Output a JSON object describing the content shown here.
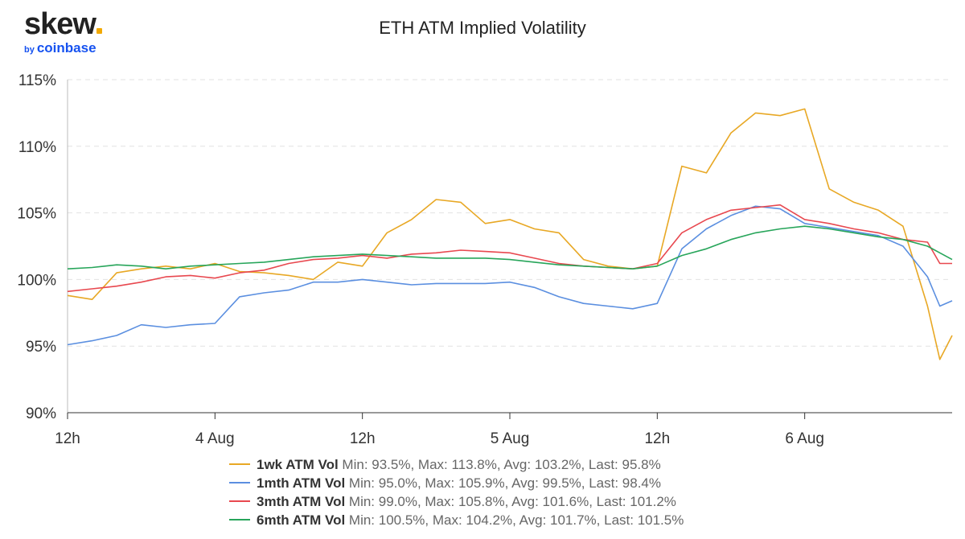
{
  "logo": {
    "wordmark": "skew",
    "by": "by",
    "brand": "coinbase"
  },
  "chart_data": {
    "type": "line",
    "title": "ETH ATM Implied Volatility",
    "xlabel": "",
    "ylabel": "",
    "ylim": [
      90,
      115
    ],
    "y_ticks": [
      90,
      95,
      100,
      105,
      110,
      115
    ],
    "y_tick_labels": [
      "90%",
      "95%",
      "100%",
      "105%",
      "110%",
      "115%"
    ],
    "xlim": [
      -12,
      60
    ],
    "x_unit": "hours from 00:00 4 Aug",
    "x_ticks": [
      -12,
      0,
      12,
      24,
      36,
      48
    ],
    "x_tick_labels": [
      "12h",
      "4 Aug",
      "12h",
      "5 Aug",
      "12h",
      "6 Aug"
    ],
    "grid": true,
    "legend_position": "bottom",
    "x": [
      -12,
      -10,
      -8,
      -6,
      -4,
      -2,
      0,
      2,
      4,
      6,
      8,
      10,
      12,
      14,
      16,
      18,
      20,
      22,
      24,
      26,
      28,
      30,
      32,
      34,
      36,
      38,
      40,
      42,
      44,
      46,
      48,
      50,
      52,
      54,
      56,
      58,
      59,
      60
    ],
    "series": [
      {
        "name": "1wk ATM Vol",
        "color": "#e8a825",
        "stats": "Min: 93.5%, Max: 113.8%, Avg: 103.2%, Last: 95.8%",
        "values": [
          98.8,
          98.5,
          100.5,
          100.8,
          101.0,
          100.8,
          101.2,
          100.6,
          100.5,
          100.3,
          100.0,
          101.3,
          101.0,
          103.5,
          104.5,
          106.0,
          105.8,
          104.2,
          104.5,
          103.8,
          103.5,
          101.5,
          101.0,
          100.8,
          101.0,
          108.5,
          108.0,
          111.0,
          112.5,
          112.3,
          112.8,
          106.8,
          105.8,
          105.2,
          104.0,
          98.0,
          94.0,
          95.8
        ]
      },
      {
        "name": "1mth ATM Vol",
        "color": "#5b8fe0",
        "stats": "Min: 95.0%, Max: 105.9%, Avg: 99.5%, Last: 98.4%",
        "values": [
          95.1,
          95.4,
          95.8,
          96.6,
          96.4,
          96.6,
          96.7,
          98.7,
          99.0,
          99.2,
          99.8,
          99.8,
          100.0,
          99.8,
          99.6,
          99.7,
          99.7,
          99.7,
          99.8,
          99.4,
          98.7,
          98.2,
          98.0,
          97.8,
          98.2,
          102.3,
          103.8,
          104.8,
          105.5,
          105.3,
          104.2,
          103.9,
          103.6,
          103.3,
          102.5,
          100.2,
          98.0,
          98.4
        ]
      },
      {
        "name": "3mth ATM Vol",
        "color": "#e8484f",
        "stats": "Min: 99.0%, Max: 105.8%, Avg: 101.6%, Last: 101.2%",
        "values": [
          99.1,
          99.3,
          99.5,
          99.8,
          100.2,
          100.3,
          100.1,
          100.5,
          100.7,
          101.2,
          101.5,
          101.6,
          101.8,
          101.6,
          101.9,
          102.0,
          102.2,
          102.1,
          102.0,
          101.6,
          101.2,
          101.0,
          100.9,
          100.8,
          101.2,
          103.5,
          104.5,
          105.2,
          105.4,
          105.6,
          104.5,
          104.2,
          103.8,
          103.5,
          103.0,
          102.8,
          101.2,
          101.2
        ]
      },
      {
        "name": "6mth ATM Vol",
        "color": "#27a55a",
        "stats": "Min: 100.5%, Max: 104.2%, Avg: 101.7%, Last: 101.5%",
        "values": [
          100.8,
          100.9,
          101.1,
          101.0,
          100.8,
          101.0,
          101.1,
          101.2,
          101.3,
          101.5,
          101.7,
          101.8,
          101.9,
          101.8,
          101.7,
          101.6,
          101.6,
          101.6,
          101.5,
          101.3,
          101.1,
          101.0,
          100.9,
          100.8,
          101.0,
          101.8,
          102.3,
          103.0,
          103.5,
          103.8,
          104.0,
          103.8,
          103.5,
          103.2,
          103.0,
          102.5,
          102.0,
          101.5
        ]
      }
    ]
  }
}
